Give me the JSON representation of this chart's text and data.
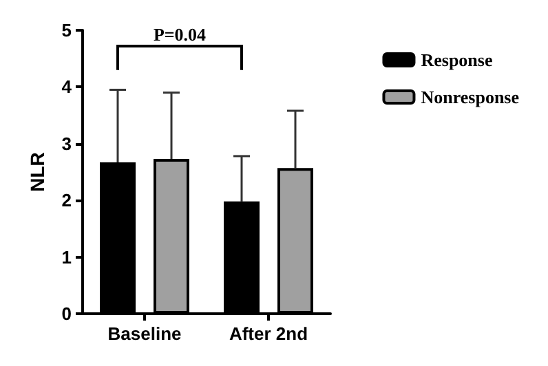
{
  "chart_data": {
    "type": "bar",
    "ylabel": "NLR",
    "categories": [
      "Baseline",
      "After 2nd"
    ],
    "series": [
      {
        "name": "Response",
        "color": "#000000",
        "values": [
          2.67,
          1.98
        ],
        "errors": [
          [
            2.67,
            3.95
          ],
          [
            1.98,
            2.78
          ]
        ]
      },
      {
        "name": "Nonresponse",
        "color": "#a0a0a0",
        "values": [
          2.73,
          2.57
        ],
        "errors": [
          [
            2.73,
            3.9
          ],
          [
            2.57,
            3.58
          ]
        ]
      }
    ],
    "ylim": [
      0,
      5
    ],
    "yticks": [
      0,
      1,
      2,
      3,
      4,
      5
    ],
    "grid": false,
    "legend": "top right",
    "annotations": [
      "P=0.04"
    ]
  }
}
